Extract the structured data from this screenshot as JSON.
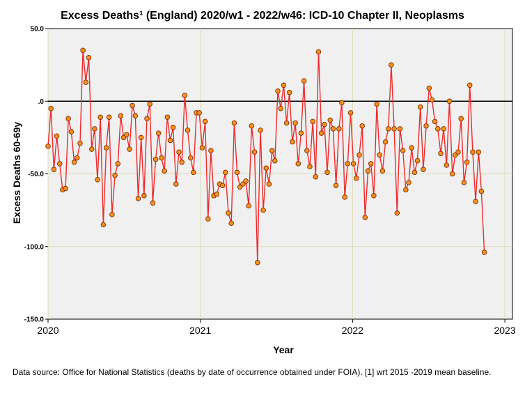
{
  "chart_data": {
    "type": "line",
    "title": "Excess Deaths¹ (England) 2020/w1 - 2022/w46: ICD-10 Chapter II, Neoplasms",
    "xlabel": "Year",
    "ylabel": "Excess Deaths 60-69y",
    "xlim": [
      2020.0,
      2023.05
    ],
    "ylim": [
      -150,
      50
    ],
    "x_ticks": [
      2020,
      2021,
      2022,
      2023
    ],
    "x_tick_labels": [
      "2020",
      "2021",
      "2022",
      "2023"
    ],
    "y_ticks": [
      50,
      0,
      -50,
      -100,
      -150
    ],
    "y_tick_labels": [
      "50.0",
      ".0",
      "-50.0",
      "-100.0",
      "-150.0"
    ],
    "reference_line": 0,
    "grid": true,
    "legend": "none",
    "colors": {
      "line": "#ee2a2a",
      "marker_fill": "#f7901e",
      "marker_edge": "#7a2a00",
      "plot_bg": "#f0f0f0",
      "grid": "#dcdcb4"
    },
    "series": [
      {
        "values": [
          -31,
          -5,
          -47,
          -24,
          -43,
          -61,
          -60,
          -12,
          -21,
          -42,
          -39,
          -29,
          35,
          13,
          30,
          -33,
          -19,
          -54,
          -11,
          -85,
          -32,
          -11,
          -78,
          -51,
          -43,
          -10,
          -25,
          -23,
          -33,
          -3,
          -10,
          -67,
          -25,
          -65,
          -12,
          -2,
          -70,
          -40,
          -22,
          -39,
          -48,
          -11,
          -27,
          -18,
          -57,
          -35,
          -42,
          4,
          -20,
          -39,
          -49,
          -8,
          -8,
          -32,
          -14,
          -81,
          -34,
          -65,
          -64,
          -57,
          -58,
          -49,
          -77,
          -84,
          -15,
          -49,
          -59,
          -57,
          -55,
          -72,
          -17,
          -35,
          -111,
          -20,
          -75,
          -46,
          -57,
          -34,
          -41,
          7,
          -5,
          11,
          -15,
          6,
          -28,
          -15,
          -43,
          -22,
          14,
          -34,
          -45,
          -14,
          -52,
          34,
          -22,
          -16,
          -49,
          -13,
          -19,
          -58,
          -19,
          -1,
          -66,
          -43,
          -8,
          -43,
          -53,
          -37,
          -17,
          -80,
          -48,
          -43,
          -65,
          -2,
          -37,
          -48,
          -28,
          -19,
          25,
          -19,
          -77,
          -19,
          -34,
          -61,
          -56,
          -32,
          -49,
          -41,
          -4,
          -47,
          -17,
          9,
          1,
          -14,
          -19,
          -36,
          -19,
          -44,
          0,
          -50,
          -37,
          -35,
          -12,
          -56,
          -42,
          11,
          -35,
          -69,
          -35,
          -62,
          -104
        ]
      }
    ]
  },
  "footnote": "Data source: Office for National Statistics (deaths by date of occurrence obtained under FOIA). [1] wrt 2015 -2019 mean baseline."
}
